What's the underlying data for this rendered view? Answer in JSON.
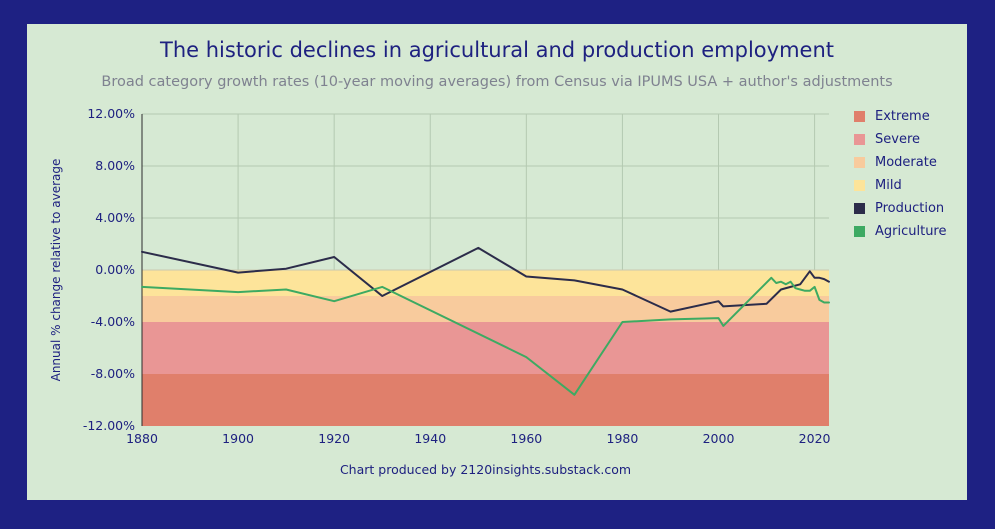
{
  "chart_data": {
    "type": "line",
    "title": "The historic declines in agricultural and production employment",
    "subtitle": "Broad category growth rates (10-year moving averages) from Census via IPUMS USA + author's adjustments",
    "xlabel": "",
    "ylabel": "Annual % change relative to average",
    "footer": "Chart produced by 2120insights.substack.com",
    "xlim": [
      1880,
      2023
    ],
    "ylim": [
      -12,
      12
    ],
    "x_ticks": [
      1880,
      1900,
      1920,
      1940,
      1960,
      1980,
      2000,
      2020
    ],
    "x_tick_labels": [
      "1880",
      "1900",
      "1920",
      "1940",
      "1960",
      "1980",
      "2000",
      "2020"
    ],
    "y_ticks": [
      12,
      8,
      4,
      0,
      -4,
      -8,
      -12
    ],
    "y_tick_labels": [
      "12.00%",
      "8.00%",
      "4.00%",
      "0.00%",
      "-4.00%",
      "-8.00%",
      "-12.00%"
    ],
    "grid": true,
    "legend_position": "right",
    "bands": [
      {
        "name": "Extreme",
        "y0": -12,
        "y1": -8,
        "color": "#e07f6b"
      },
      {
        "name": "Severe",
        "y0": -8,
        "y1": -4,
        "color": "#e99695"
      },
      {
        "name": "Moderate",
        "y0": -4,
        "y1": -2,
        "color": "#f8cb9d"
      },
      {
        "name": "Mild",
        "y0": -2,
        "y1": 0,
        "color": "#fde49a"
      }
    ],
    "series": [
      {
        "name": "Production",
        "color": "#2c2c4a",
        "x": [
          1880,
          1900,
          1910,
          1920,
          1930,
          1950,
          1960,
          1970,
          1980,
          1990,
          2000,
          2001,
          2010,
          2013,
          2015,
          2017,
          2019,
          2020,
          2021,
          2022,
          2023
        ],
        "y": [
          1.4,
          -0.2,
          0.1,
          1.0,
          -2.0,
          1.7,
          -0.5,
          -0.8,
          -1.5,
          -3.2,
          -2.4,
          -2.8,
          -2.6,
          -1.5,
          -1.3,
          -1.1,
          -0.1,
          -0.6,
          -0.6,
          -0.7,
          -0.9
        ]
      },
      {
        "name": "Agriculture",
        "color": "#3daa62",
        "x": [
          1880,
          1900,
          1910,
          1920,
          1930,
          1960,
          1970,
          1980,
          1990,
          2000,
          2001,
          2011,
          2012,
          2013,
          2014,
          2015,
          2016,
          2017,
          2018,
          2019,
          2020,
          2021,
          2022,
          2023
        ],
        "y": [
          -1.3,
          -1.7,
          -1.5,
          -2.4,
          -1.3,
          -6.7,
          -9.6,
          -4.0,
          -3.8,
          -3.7,
          -4.3,
          -0.6,
          -1.0,
          -0.9,
          -1.1,
          -0.9,
          -1.4,
          -1.5,
          -1.6,
          -1.6,
          -1.3,
          -2.3,
          -2.5,
          -2.5
        ]
      }
    ]
  }
}
